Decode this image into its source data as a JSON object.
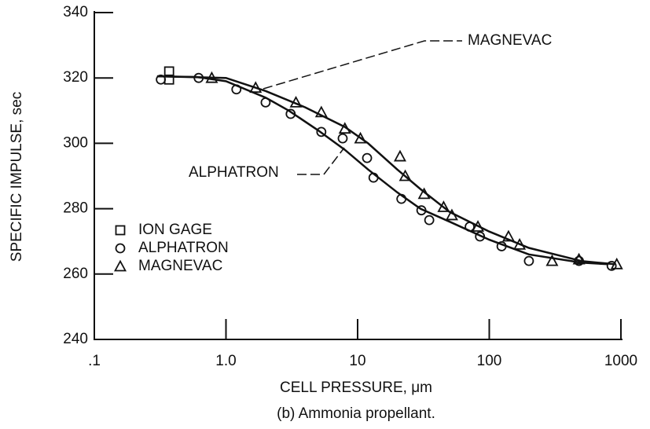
{
  "chart_data": {
    "type": "scatter",
    "xlabel": "CELL PRESSURE, μm",
    "ylabel": "SPECIFIC IMPULSE, sec",
    "caption": "(b) Ammonia propellant.",
    "xscale": "log",
    "xlim": [
      0.1,
      1000
    ],
    "xticks": [
      {
        "value": 0.1,
        "label": ".1"
      },
      {
        "value": 1,
        "label": "1.0"
      },
      10,
      100,
      1000
    ],
    "ylim": [
      240,
      340
    ],
    "yticks": [
      240,
      260,
      280,
      300,
      320,
      340
    ],
    "series": [
      {
        "name": "ION GAGE",
        "color": "#111111",
        "marker": "square",
        "x": [
          0.37,
          0.37
        ],
        "values": [
          322,
          319.5
        ]
      },
      {
        "name": "ALPHATRON",
        "color": "#111111",
        "marker": "circle",
        "x": [
          0.32,
          0.62,
          1.2,
          2.0,
          3.1,
          5.3,
          7.7,
          11.8,
          13.2,
          21.5,
          30.5,
          35,
          71,
          85,
          124,
          200,
          480,
          850
        ],
        "values": [
          319.5,
          320,
          316.5,
          312.5,
          309,
          303.5,
          301.5,
          295.5,
          289.5,
          283,
          279.5,
          276.5,
          274.5,
          271.5,
          268.5,
          264,
          264,
          262.5
        ]
      },
      {
        "name": "MAGNEVAC",
        "color": "#111111",
        "marker": "triangle",
        "x": [
          0.78,
          1.68,
          3.4,
          5.3,
          8,
          10.5,
          21,
          23,
          32,
          45,
          52,
          82,
          140,
          170,
          300,
          480,
          930
        ],
        "values": [
          320,
          317,
          312.5,
          309.5,
          304.5,
          301.5,
          296,
          290,
          284.5,
          280.5,
          278,
          274.5,
          271.5,
          269,
          264,
          264.5,
          263
        ]
      }
    ],
    "curves": [
      {
        "color": "#111111",
        "x": [
          0.3,
          0.6,
          1,
          2,
          3,
          5,
          8,
          12,
          20,
          30,
          50,
          100,
          200,
          500,
          800
        ],
        "values": [
          320.5,
          320.3,
          319,
          314,
          310,
          304,
          298,
          292,
          285,
          280,
          276,
          270.5,
          266,
          263.5,
          263
        ]
      },
      {
        "color": "#111111",
        "x": [
          0.3,
          1,
          2,
          4,
          8,
          12,
          20,
          30,
          50,
          100,
          200,
          500,
          900
        ],
        "values": [
          320.5,
          320,
          316,
          311,
          305,
          300,
          292,
          286,
          279,
          273,
          268,
          264,
          263
        ]
      }
    ],
    "annotations": [
      "MAGNEVAC",
      "ALPHATRON"
    ]
  }
}
